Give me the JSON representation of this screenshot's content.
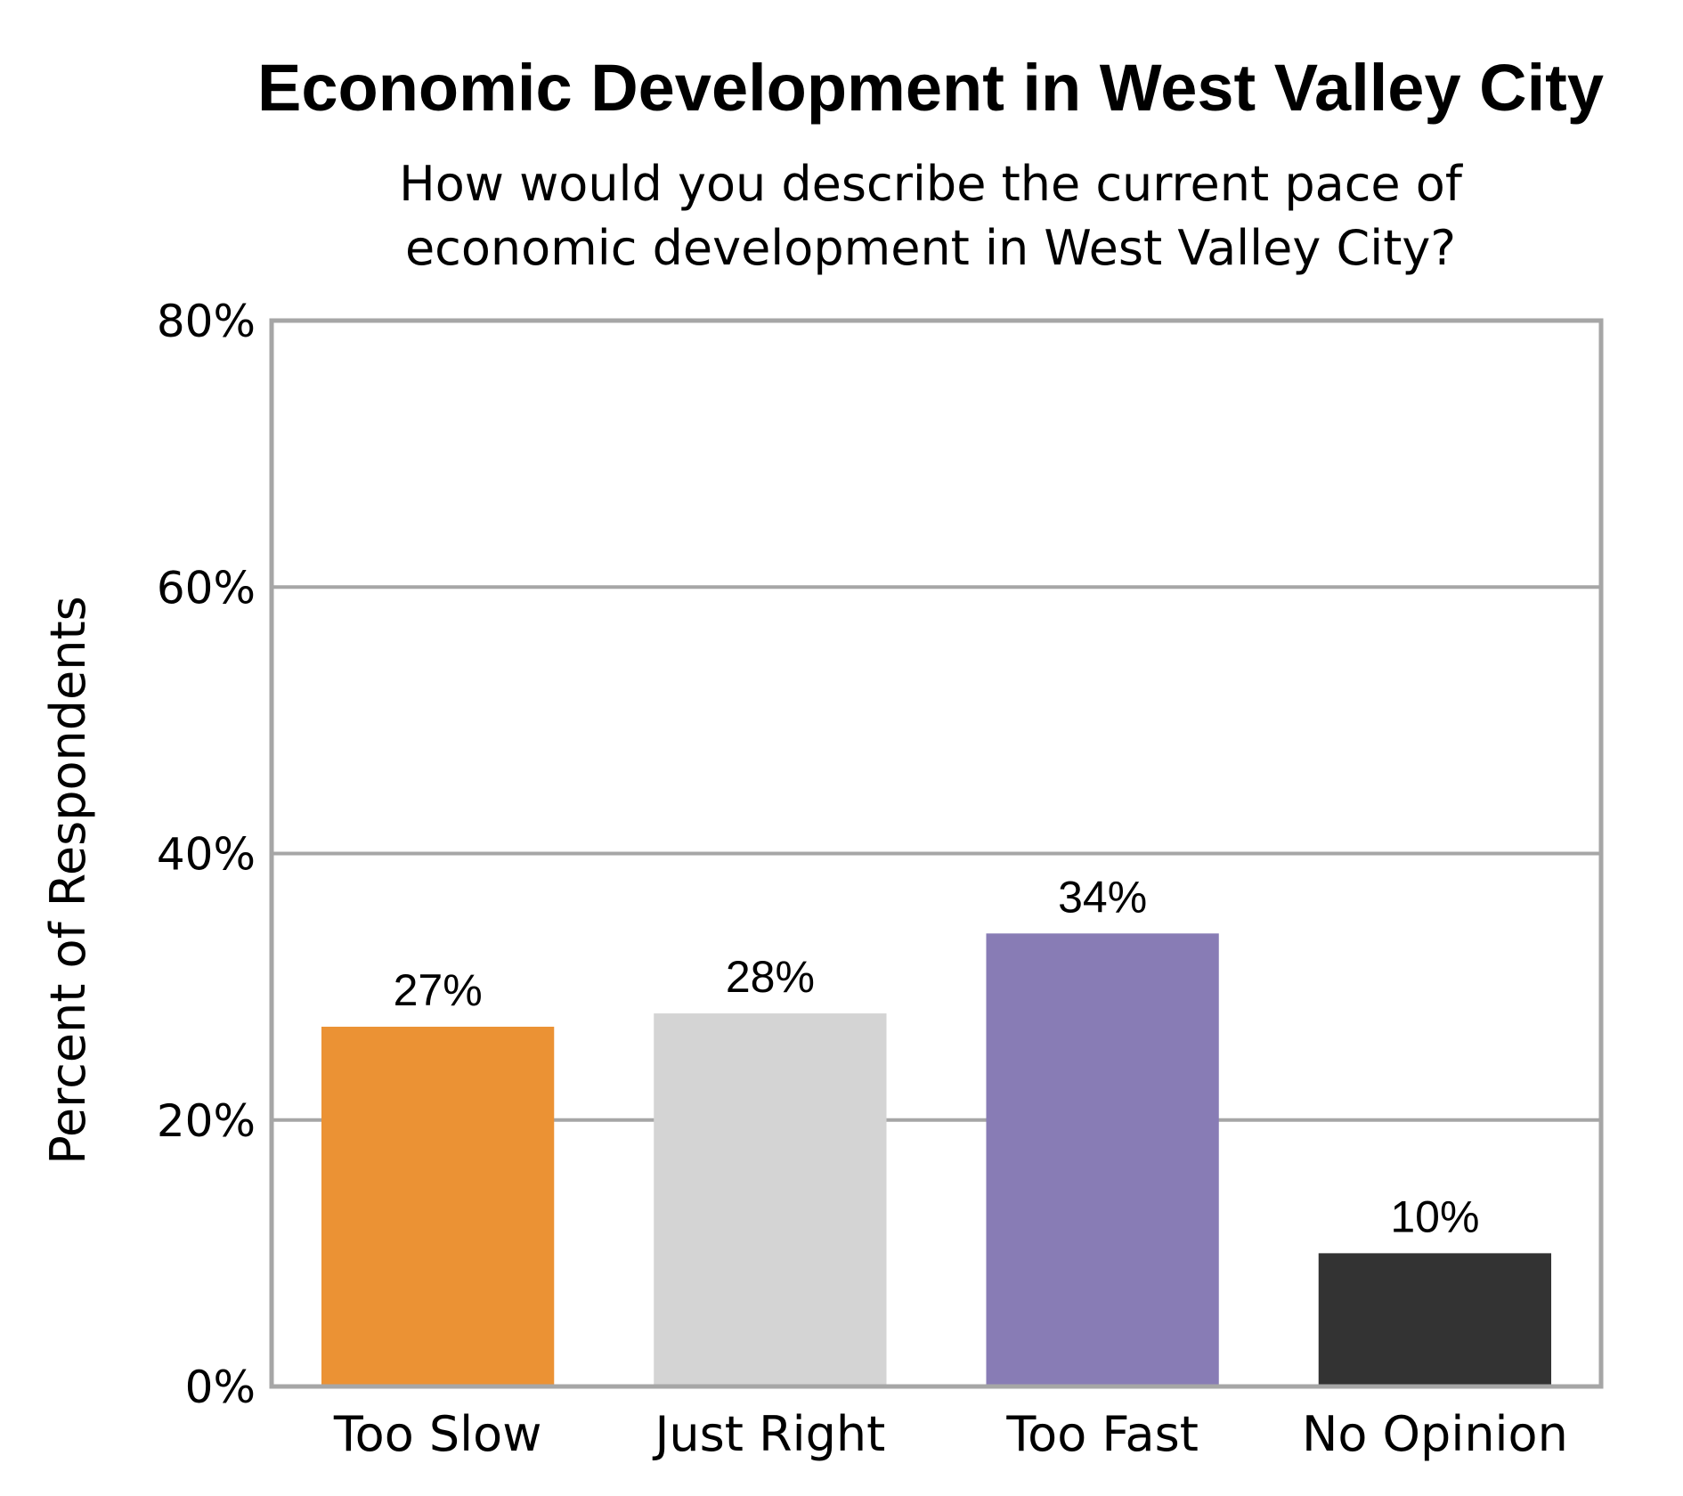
{
  "chart_data": {
    "type": "bar",
    "title": "Economic Development in West Valley City",
    "subtitle": [
      "How would you describe the current pace of",
      "economic development in West Valley City?"
    ],
    "ylabel": "Percent of Respondents",
    "xlabel": "",
    "ylim": [
      0,
      80
    ],
    "yticks": [
      0,
      20,
      40,
      60,
      80
    ],
    "ytick_labels": [
      "0%",
      "20%",
      "40%",
      "60%",
      "80%"
    ],
    "categories": [
      "Too Slow",
      "Just Right",
      "Too Fast",
      "No Opinion"
    ],
    "values": [
      27,
      28,
      34,
      10
    ],
    "data_labels": [
      "27%",
      "28%",
      "34%",
      "10%"
    ],
    "colors": [
      "#eb9234",
      "#d4d4d4",
      "#887cb5",
      "#333333"
    ],
    "grid": true,
    "legend": "none"
  }
}
